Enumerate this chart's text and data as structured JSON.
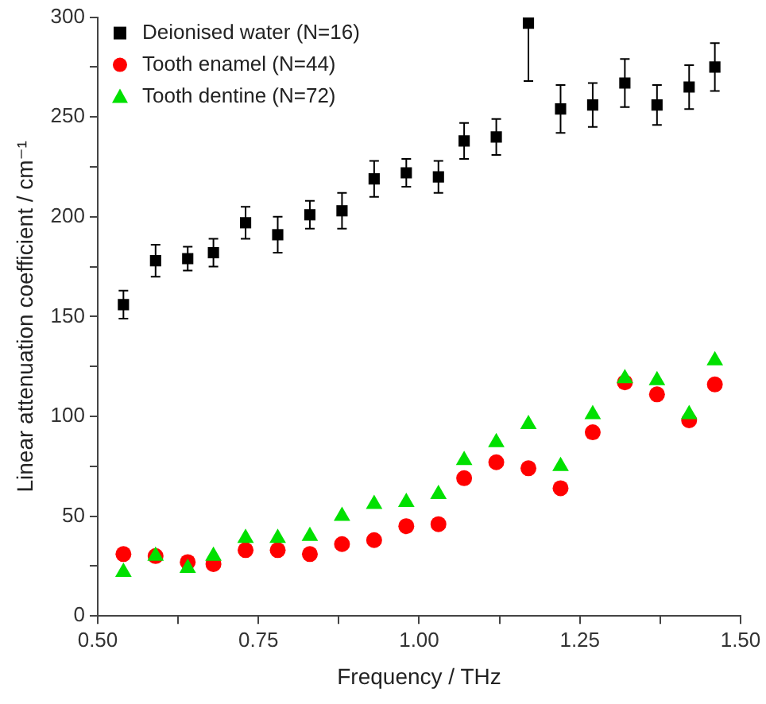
{
  "chart_data": {
    "type": "scatter",
    "xlabel": "Frequency / THz",
    "ylabel": "Linear attenuation coefficient / cm⁻¹",
    "x": [
      0.54,
      0.59,
      0.64,
      0.68,
      0.73,
      0.78,
      0.83,
      0.88,
      0.93,
      0.98,
      1.03,
      1.07,
      1.12,
      1.17,
      1.22,
      1.27,
      1.32,
      1.37,
      1.42,
      1.46
    ],
    "series": [
      {
        "name": "Deionised water (N=16)",
        "color": "#000000",
        "marker": "square",
        "values": [
          156,
          178,
          179,
          182,
          197,
          191,
          201,
          203,
          219,
          222,
          220,
          238,
          240,
          297,
          254,
          256,
          267,
          256,
          265,
          275
        ],
        "errors": [
          7,
          8,
          6,
          7,
          8,
          9,
          7,
          9,
          9,
          7,
          8,
          9,
          9,
          [
            268,
            298
          ],
          12,
          11,
          12,
          10,
          11,
          12
        ]
      },
      {
        "name": "Tooth enamel (N=44)",
        "color": "#ff0000",
        "marker": "circle",
        "values": [
          31,
          30,
          27,
          26,
          33,
          33,
          31,
          36,
          38,
          45,
          46,
          69,
          77,
          74,
          64,
          92,
          117,
          111,
          98,
          116
        ]
      },
      {
        "name": "Tooth dentine (N=72)",
        "color": "#00e000",
        "marker": "triangle",
        "values": [
          22,
          30,
          24,
          30,
          39,
          39,
          40,
          50,
          56,
          57,
          61,
          78,
          87,
          96,
          75,
          101,
          119,
          118,
          101,
          128
        ]
      }
    ],
    "xlim": [
      0.5,
      1.5
    ],
    "xticks": [
      {
        "value": 0.5,
        "label": "0.50"
      },
      {
        "value": 0.625,
        "label": null
      },
      0.75,
      {
        "value": 0.875,
        "label": null
      },
      {
        "value": 1,
        "label": "1.00"
      },
      {
        "value": 1.125,
        "label": null
      },
      1.25,
      {
        "value": 1.375,
        "label": null
      },
      {
        "value": 1.5,
        "label": "1.50"
      }
    ],
    "ylim": [
      0,
      300
    ],
    "yticks": [
      0,
      {
        "value": 25,
        "label": null
      },
      50,
      {
        "value": 75,
        "label": null
      },
      100,
      {
        "value": 125,
        "label": null
      },
      150,
      {
        "value": 175,
        "label": null
      },
      200,
      {
        "value": 225,
        "label": null
      },
      250,
      {
        "value": 275,
        "label": null
      },
      300
    ],
    "grid": false,
    "legend": "top left"
  }
}
